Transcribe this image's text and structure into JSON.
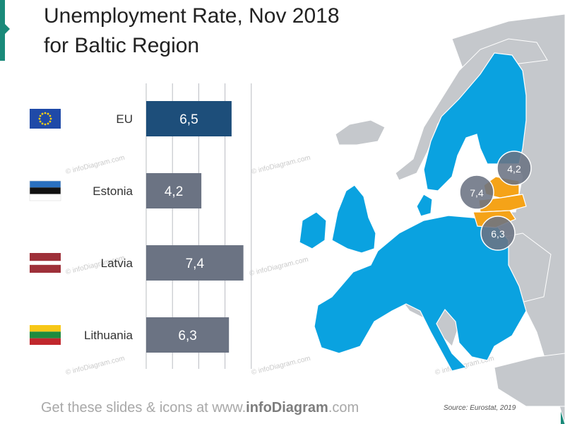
{
  "header": {
    "title_line1": "Unemployment Rate, Nov 2018",
    "title_line2": "for Baltic Region"
  },
  "chart_data": {
    "type": "bar",
    "orientation": "horizontal",
    "title": "Unemployment Rate, Nov 2018 for Baltic Region",
    "categories": [
      "EU",
      "Estonia",
      "Latvia",
      "Lithuania"
    ],
    "values": [
      6.5,
      4.2,
      7.4,
      6.3
    ],
    "value_labels": [
      "6,5",
      "4,2",
      "7,4",
      "6,3"
    ],
    "xlim": [
      0,
      8
    ],
    "grid": "vertical",
    "colors": [
      "#1d4e7a",
      "#6b7383",
      "#6b7383",
      "#6b7383"
    ]
  },
  "flags": [
    {
      "name": "EU",
      "icon": "eu-flag-icon"
    },
    {
      "name": "Estonia",
      "icon": "estonia-flag-icon"
    },
    {
      "name": "Latvia",
      "icon": "latvia-flag-icon"
    },
    {
      "name": "Lithuania",
      "icon": "lithuania-flag-icon"
    }
  ],
  "map": {
    "bubbles": [
      "4,2",
      "7,4",
      "6,3"
    ],
    "colors": {
      "eu": "#0aa2e0",
      "baltic": "#f5a318",
      "other": "#c5c8cc",
      "bubble": "#6b7383"
    }
  },
  "watermark": "© infoDiagram.com",
  "footer": {
    "prefix": "Get these slides & icons at www.",
    "brand": "infoDiagram",
    "suffix": ".com"
  },
  "source": "Source: Eurostat, 2019"
}
